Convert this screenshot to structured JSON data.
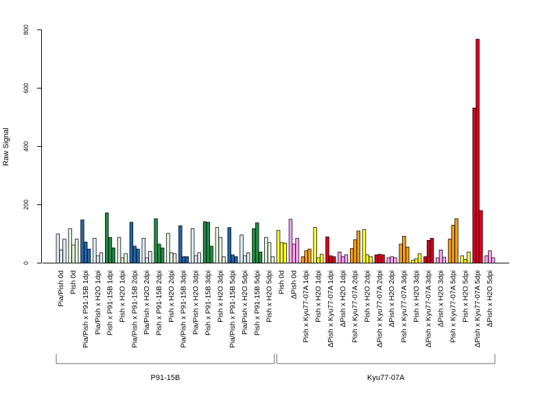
{
  "chart_data": {
    "type": "bar",
    "ylabel": "Raw Signal",
    "ylim": [
      0,
      800
    ],
    "yticks": [
      0,
      200,
      400,
      600,
      800
    ],
    "categories": [
      "Pia/Pish 0d",
      "Pish 0d",
      "Pia/Pish x P91-15B 1dpi",
      "Pia/Pish x H2O 1dpi",
      "Pish x P91-15B 1dpi",
      "Pish x H2O 1dpi",
      "Pia/Pish x P91-15B 2dpi",
      "Pia/Pish x H2O 2dpi",
      "Pish x P91-15B 2dpi",
      "Pish x H2O 2dpi",
      "Pia/Pish x P91-15B 3dpi",
      "Pia/Pish x H2O 3dpi",
      "Pish x P91-15B 3dpi",
      "Pish x H2O 3dpi",
      "Pia/Pish x P91-15B 5dpi",
      "Pia/Pish x H2O 5dpi",
      "Pish x P91-15B 5dpi",
      "Pish x H2O 5dpi",
      "Pish 0d",
      "ΔPish 0d",
      "Pish x Kyu77-07A 1dpi",
      "Pish x H2O 1dpi",
      "ΔPish x Kyu77-07A 1dpi",
      "ΔPish x H2O 1dpi",
      "Pish x Kyu77-07A 2dpi",
      "Pish x H2O 2dpi",
      "ΔPish x Kyu77-07A 2dpi",
      "ΔPish x H2O 2dpi",
      "Pish x Kyu77-07A 3dpi",
      "Pish x H2O 3dpi",
      "ΔPish x Kyu77-07A 3dpi",
      "ΔPish x H2O 3dpi",
      "Pish x Kyu77-07A 5dpi",
      "Pish x H2O 5dpi",
      "ΔPish x Kyu77-07A 5dpi",
      "ΔPish x H2O 5dpi"
    ],
    "replicates": [
      [
        100,
        45,
        82
      ],
      [
        118,
        62,
        82
      ],
      [
        148,
        72,
        48
      ],
      [
        85,
        25,
        35
      ],
      [
        172,
        88,
        52
      ],
      [
        88,
        18,
        32
      ],
      [
        140,
        58,
        48
      ],
      [
        85,
        18,
        40
      ],
      [
        152,
        65,
        52
      ],
      [
        102,
        35,
        32
      ],
      [
        128,
        22,
        22
      ],
      [
        118,
        25,
        35
      ],
      [
        142,
        140,
        58
      ],
      [
        122,
        88,
        22
      ],
      [
        122,
        28,
        22
      ],
      [
        96,
        25,
        35
      ],
      [
        118,
        138,
        38
      ],
      [
        88,
        70,
        22
      ],
      [
        112,
        70,
        68
      ],
      [
        150,
        65,
        85
      ],
      [
        22,
        42,
        48
      ],
      [
        122,
        18,
        30
      ],
      [
        90,
        25,
        22
      ],
      [
        38,
        22,
        28
      ],
      [
        50,
        80,
        110
      ],
      [
        115,
        28,
        22
      ],
      [
        28,
        30,
        28
      ],
      [
        18,
        22,
        18
      ],
      [
        65,
        92,
        55
      ],
      [
        10,
        15,
        32
      ],
      [
        22,
        78,
        85
      ],
      [
        18,
        45,
        20
      ],
      [
        82,
        130,
        152
      ],
      [
        25,
        12,
        38
      ],
      [
        532,
        768,
        180
      ],
      [
        25,
        42,
        18
      ]
    ],
    "bar_colors": [
      "#DEEBF7",
      "#E5F5E0",
      "#2166AC",
      "#DEEBF7",
      "#238B45",
      "#E5F5E0",
      "#2166AC",
      "#DEEBF7",
      "#238B45",
      "#E5F5E0",
      "#2166AC",
      "#DEEBF7",
      "#238B45",
      "#E5F5E0",
      "#2166AC",
      "#DEEBF7",
      "#238B45",
      "#E5F5E0",
      "#FFFF33",
      "#FFA3F2",
      "#F59E16",
      "#FFFF33",
      "#D7001F",
      "#FFA3F2",
      "#F59E16",
      "#FFFF33",
      "#D7001F",
      "#FFA3F2",
      "#F59E16",
      "#FFFF33",
      "#D7001F",
      "#FFA3F2",
      "#F59E16",
      "#FFFF33",
      "#D7001F",
      "#FFA3F2"
    ],
    "groups": [
      {
        "name": "P91-15B",
        "start": 0,
        "end": 17
      },
      {
        "name": "Kyu77-07A",
        "start": 18,
        "end": 35
      }
    ],
    "grid": false,
    "legend": "none"
  }
}
